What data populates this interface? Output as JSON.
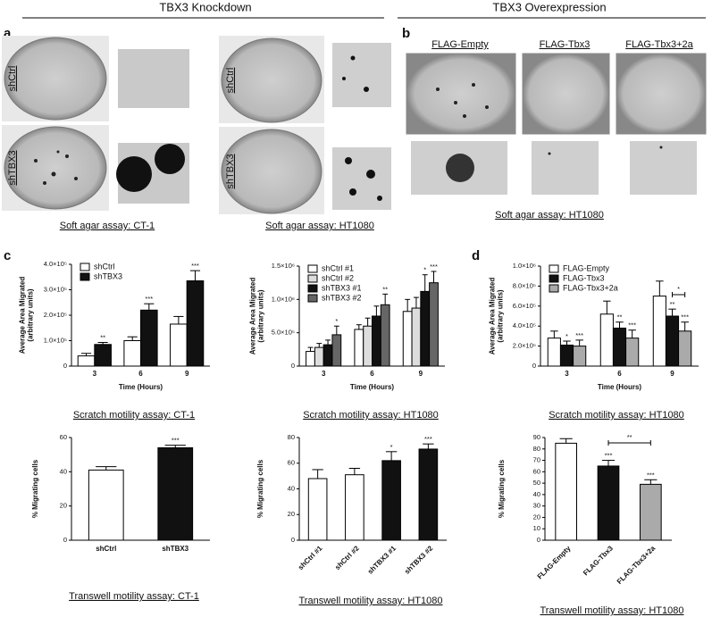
{
  "headers": [
    "TBX3 Knockdown",
    "TBX3 Overexpression"
  ],
  "panels": [
    "a",
    "b",
    "c",
    "d"
  ],
  "photos": {
    "ct1_rows": [
      "shCtrl",
      "shTBX3"
    ],
    "ht1080_rows": [
      "shCtrl",
      "shTBX3"
    ],
    "overexpression_columns": [
      "FLAG-Empty",
      "FLAG-Tbx3",
      "FLAG-Tbx3+2a"
    ]
  },
  "captions": [
    "Soft agar assay: CT-1",
    "Soft agar assay: HT1080",
    "Soft agar assay: HT1080"
  ],
  "chart_data": [
    {
      "type": "bar",
      "caption": "Scratch motility assay: CT-1",
      "ylabel": [
        "Average Area Migrated",
        "(arbitrary units)"
      ],
      "xlabel": "Time (Hours)",
      "categories": [
        "3",
        "6",
        "9"
      ],
      "legend": "upper left",
      "series": [
        {
          "name": "shCtrl",
          "color": "#ffffff",
          "values": [
            40000,
            100000,
            165000
          ],
          "errors": [
            10000,
            15000,
            30000
          ],
          "stars": [
            null,
            null,
            null
          ]
        },
        {
          "name": "shTBX3",
          "color": "#111111",
          "values": [
            85000,
            220000,
            335000
          ],
          "errors": [
            8000,
            25000,
            40000
          ],
          "stars": [
            "**",
            "***",
            "***"
          ]
        }
      ],
      "ylim": [
        0,
        400000
      ],
      "yticks": [
        0,
        {
          "value": 100000,
          "label": "1.0×10⁵"
        },
        {
          "value": 200000,
          "label": "2.0×10⁵"
        },
        {
          "value": 300000,
          "label": "3.0×10⁵"
        },
        {
          "value": 400000,
          "label": "4.0×10⁵"
        }
      ]
    },
    {
      "type": "bar",
      "caption": "Scratch motility assay: HT1080",
      "ylabel": [
        "Average Area Migrated",
        "(arbitrary units)"
      ],
      "xlabel": "Time (Hours)",
      "categories": [
        "3",
        "6",
        "9"
      ],
      "legend": "upper left",
      "series": [
        {
          "name": "shCtrl #1",
          "color": "#ffffff",
          "values": [
            220000,
            550000,
            820000
          ],
          "errors": [
            60000,
            70000,
            180000
          ],
          "stars": [
            null,
            null,
            null
          ]
        },
        {
          "name": "shCtrl #2",
          "color": "#dddddd",
          "values": [
            280000,
            600000,
            870000
          ],
          "errors": [
            60000,
            120000,
            160000
          ],
          "stars": [
            null,
            null,
            null
          ]
        },
        {
          "name": "shTBX3 #1",
          "color": "#111111",
          "values": [
            320000,
            750000,
            1120000
          ],
          "errors": [
            70000,
            150000,
            250000
          ],
          "stars": [
            null,
            null,
            "*"
          ]
        },
        {
          "name": "shTBX3 #2",
          "color": "#666666",
          "values": [
            470000,
            920000,
            1250000
          ],
          "errors": [
            130000,
            160000,
            170000
          ],
          "stars": [
            "*",
            "**",
            "***"
          ]
        }
      ],
      "ylim": [
        0,
        1500000
      ],
      "yticks": [
        0,
        {
          "value": 500000,
          "label": "5.0×10⁵"
        },
        {
          "value": 1000000,
          "label": "1.0×10⁶"
        },
        {
          "value": 1500000,
          "label": "1.5×10⁶"
        }
      ]
    },
    {
      "type": "bar",
      "caption": "Scratch motility assay: HT1080",
      "ylabel": [
        "Average Area Migrated",
        "(arbitrary units)"
      ],
      "xlabel": "Time (Hours)",
      "categories": [
        "3",
        "6",
        "9"
      ],
      "legend": "upper left",
      "bracket_label": "*",
      "series": [
        {
          "name": "FLAG-Empty",
          "color": "#ffffff",
          "values": [
            280000,
            520000,
            700000
          ],
          "errors": [
            70000,
            130000,
            150000
          ],
          "stars": [
            null,
            null,
            null
          ]
        },
        {
          "name": "FLAG-Tbx3",
          "color": "#111111",
          "values": [
            210000,
            380000,
            500000
          ],
          "errors": [
            40000,
            60000,
            70000
          ],
          "stars": [
            "*",
            "**",
            "**"
          ]
        },
        {
          "name": "FLAG-Tbx3+2a",
          "color": "#aaaaaa",
          "values": [
            200000,
            280000,
            350000
          ],
          "errors": [
            60000,
            80000,
            90000
          ],
          "stars": [
            "***",
            "***",
            "***"
          ]
        }
      ],
      "ylim": [
        0,
        1000000
      ],
      "yticks": [
        0,
        {
          "value": 200000,
          "label": "2.0×10⁵"
        },
        {
          "value": 400000,
          "label": "4.0×10⁵"
        },
        {
          "value": 600000,
          "label": "6.0×10⁵"
        },
        {
          "value": 800000,
          "label": "8.0×10⁵"
        },
        {
          "value": 1000000,
          "label": "1.0×10⁶"
        }
      ]
    },
    {
      "type": "bar",
      "caption": "Transwell motility assay: CT-1",
      "ylabel": [
        "% Migrating cells"
      ],
      "categories": [
        "shCtrl",
        "shTBX3"
      ],
      "colors": [
        "#ffffff",
        "#111111"
      ],
      "values": [
        41,
        54
      ],
      "errors": [
        2,
        1.5
      ],
      "stars": [
        null,
        "***"
      ],
      "ylim": [
        0,
        60
      ],
      "yticks": [
        0,
        20,
        40,
        60
      ]
    },
    {
      "type": "bar",
      "caption": "Transwell motility assay: HT1080",
      "ylabel": [
        "% Migrating cells"
      ],
      "categories": [
        "shCtrl #1",
        "shCtrl #2",
        "shTBX3 #1",
        "shTBX3 #2"
      ],
      "colors": [
        "#ffffff",
        "#ffffff",
        "#111111",
        "#111111"
      ],
      "values": [
        48,
        51,
        62,
        71
      ],
      "errors": [
        7,
        5,
        7,
        4
      ],
      "stars": [
        null,
        null,
        "*",
        "***"
      ],
      "ylim": [
        0,
        80
      ],
      "yticks": [
        0,
        20,
        40,
        60,
        80
      ]
    },
    {
      "type": "bar",
      "caption": "Transwell motility assay: HT1080",
      "ylabel": [
        "% Migrating cells"
      ],
      "categories": [
        "FLAG-Empty",
        "FLAG-Tbx3",
        "FLAG-Tbx3+2a"
      ],
      "colors": [
        "#ffffff",
        "#111111",
        "#aaaaaa"
      ],
      "values": [
        85,
        65,
        49
      ],
      "errors": [
        4,
        5,
        4
      ],
      "stars": [
        null,
        "***",
        "***"
      ],
      "bracket_label": "**",
      "ylim": [
        0,
        90
      ],
      "yticks": [
        0,
        10,
        20,
        30,
        40,
        50,
        60,
        70,
        80,
        90
      ]
    }
  ]
}
